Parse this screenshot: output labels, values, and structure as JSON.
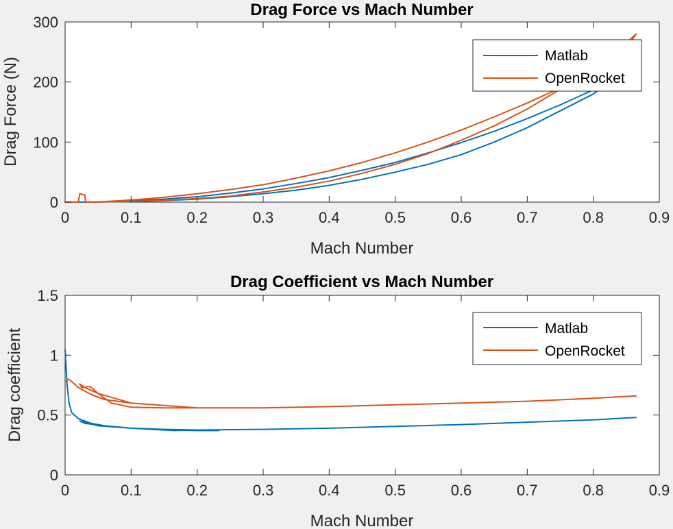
{
  "chart_data": [
    {
      "type": "line",
      "title": "Drag Force vs Mach Number",
      "xlabel": "Mach Number",
      "ylabel": "Drag Force (N)",
      "xlim": [
        0,
        0.9
      ],
      "ylim": [
        0,
        300
      ],
      "xticks": [
        "0",
        "0.1",
        "0.2",
        "0.3",
        "0.4",
        "0.5",
        "0.6",
        "0.7",
        "0.8",
        "0.9"
      ],
      "yticks": [
        "0",
        "100",
        "200",
        "300"
      ],
      "legend": "top-right",
      "series": [
        {
          "name": "Matlab",
          "color": "#0072BD",
          "points": [
            [
              0,
              0
            ],
            [
              0.05,
              0.3
            ],
            [
              0.1,
              2
            ],
            [
              0.15,
              5
            ],
            [
              0.2,
              9
            ],
            [
              0.25,
              15
            ],
            [
              0.3,
              22
            ],
            [
              0.35,
              31
            ],
            [
              0.4,
              41
            ],
            [
              0.45,
              53
            ],
            [
              0.5,
              66
            ],
            [
              0.55,
              82
            ],
            [
              0.6,
              99
            ],
            [
              0.65,
              118
            ],
            [
              0.7,
              139
            ],
            [
              0.75,
              162
            ],
            [
              0.8,
              187
            ],
            [
              0.83,
              205
            ],
            [
              0.8,
              180
            ],
            [
              0.75,
              152
            ],
            [
              0.7,
              124
            ],
            [
              0.65,
              100
            ],
            [
              0.6,
              79
            ],
            [
              0.55,
              63
            ],
            [
              0.5,
              50
            ],
            [
              0.45,
              38
            ],
            [
              0.4,
              28
            ],
            [
              0.35,
              20
            ],
            [
              0.3,
              14
            ],
            [
              0.25,
              9
            ],
            [
              0.2,
              5
            ],
            [
              0.15,
              2.5
            ],
            [
              0.1,
              1
            ],
            [
              0.05,
              0.2
            ],
            [
              0.03,
              0
            ]
          ]
        },
        {
          "name": "OpenRocket",
          "color": "#D95319",
          "points": [
            [
              0,
              0
            ],
            [
              0.02,
              0
            ],
            [
              0.022,
              14
            ],
            [
              0.03,
              12
            ],
            [
              0.031,
              0
            ],
            [
              0.05,
              0.5
            ],
            [
              0.1,
              3.5
            ],
            [
              0.15,
              8
            ],
            [
              0.2,
              14
            ],
            [
              0.25,
              21
            ],
            [
              0.3,
              29
            ],
            [
              0.35,
              40
            ],
            [
              0.4,
              52
            ],
            [
              0.45,
              66
            ],
            [
              0.5,
              82
            ],
            [
              0.55,
              100
            ],
            [
              0.6,
              120
            ],
            [
              0.65,
              142
            ],
            [
              0.7,
              165
            ],
            [
              0.75,
              190
            ],
            [
              0.8,
              218
            ],
            [
              0.85,
              255
            ],
            [
              0.865,
              280
            ],
            [
              0.85,
              265
            ],
            [
              0.8,
              225
            ],
            [
              0.75,
              188
            ],
            [
              0.7,
              155
            ],
            [
              0.65,
              127
            ],
            [
              0.6,
              103
            ],
            [
              0.55,
              81
            ],
            [
              0.5,
              63
            ],
            [
              0.45,
              48
            ],
            [
              0.4,
              35
            ],
            [
              0.35,
              25
            ],
            [
              0.3,
              17
            ],
            [
              0.25,
              10
            ],
            [
              0.2,
              6
            ],
            [
              0.15,
              3
            ],
            [
              0.1,
              1.2
            ],
            [
              0.05,
              0.2
            ],
            [
              0.03,
              0
            ]
          ]
        }
      ]
    },
    {
      "type": "line",
      "title": "Drag Coefficient vs Mach Number",
      "xlabel": "Mach Number",
      "ylabel": "Drag coefficient",
      "xlim": [
        0,
        0.9
      ],
      "ylim": [
        0,
        1.5
      ],
      "xticks": [
        "0",
        "0.1",
        "0.2",
        "0.3",
        "0.4",
        "0.5",
        "0.6",
        "0.7",
        "0.8",
        "0.9"
      ],
      "yticks": [
        "0",
        "0.5",
        "1",
        "1.5"
      ],
      "legend": "top-right",
      "series": [
        {
          "name": "Matlab",
          "color": "#0072BD",
          "points": [
            [
              0,
              1.05
            ],
            [
              0.003,
              0.75
            ],
            [
              0.006,
              0.6
            ],
            [
              0.01,
              0.52
            ],
            [
              0.02,
              0.47
            ],
            [
              0.04,
              0.43
            ],
            [
              0.06,
              0.41
            ],
            [
              0.1,
              0.39
            ],
            [
              0.15,
              0.375
            ],
            [
              0.2,
              0.37
            ],
            [
              0.233,
              0.37
            ],
            [
              0.2,
              0.375
            ],
            [
              0.15,
              0.38
            ],
            [
              0.1,
              0.39
            ],
            [
              0.06,
              0.41
            ],
            [
              0.03,
              0.43
            ],
            [
              0.022,
              0.45
            ],
            [
              0.05,
              0.41
            ],
            [
              0.1,
              0.39
            ],
            [
              0.165,
              0.37
            ],
            [
              0.2,
              0.375
            ],
            [
              0.3,
              0.38
            ],
            [
              0.4,
              0.39
            ],
            [
              0.5,
              0.405
            ],
            [
              0.6,
              0.42
            ],
            [
              0.7,
              0.44
            ],
            [
              0.8,
              0.46
            ],
            [
              0.865,
              0.48
            ]
          ]
        },
        {
          "name": "OpenRocket",
          "color": "#D95319",
          "points": [
            [
              0,
              0.78
            ],
            [
              0.005,
              0.8
            ],
            [
              0.01,
              0.78
            ],
            [
              0.02,
              0.73
            ],
            [
              0.04,
              0.67
            ],
            [
              0.06,
              0.63
            ],
            [
              0.1,
              0.6
            ],
            [
              0.15,
              0.58
            ],
            [
              0.2,
              0.56
            ],
            [
              0.15,
              0.56
            ],
            [
              0.1,
              0.565
            ],
            [
              0.07,
              0.6
            ],
            [
              0.05,
              0.68
            ],
            [
              0.04,
              0.73
            ],
            [
              0.035,
              0.74
            ],
            [
              0.03,
              0.73
            ],
            [
              0.025,
              0.73
            ],
            [
              0.022,
              0.76
            ],
            [
              0.03,
              0.73
            ],
            [
              0.05,
              0.68
            ],
            [
              0.1,
              0.6
            ],
            [
              0.2,
              0.56
            ],
            [
              0.3,
              0.56
            ],
            [
              0.4,
              0.57
            ],
            [
              0.5,
              0.585
            ],
            [
              0.6,
              0.6
            ],
            [
              0.7,
              0.615
            ],
            [
              0.8,
              0.64
            ],
            [
              0.865,
              0.66
            ]
          ]
        }
      ]
    }
  ]
}
